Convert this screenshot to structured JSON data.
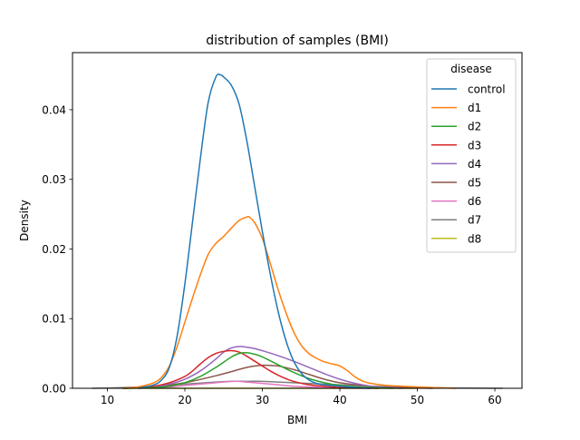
{
  "chart_data": {
    "type": "line",
    "title": "distribution of samples (BMI)",
    "xlabel": "BMI",
    "ylabel": "Density",
    "xlim": [
      5.5,
      63.5
    ],
    "ylim": [
      0,
      0.0482
    ],
    "xticks": [
      10,
      20,
      30,
      40,
      50,
      60
    ],
    "xtick_labels": [
      "10",
      "20",
      "30",
      "40",
      "50",
      "60"
    ],
    "yticks": [
      0,
      0.01,
      0.02,
      0.03,
      0.04
    ],
    "ytick_labels": [
      "0.00",
      "0.01",
      "0.02",
      "0.03",
      "0.04"
    ],
    "grid": false,
    "legend": {
      "title": "disease",
      "placement": "top-right"
    },
    "series": [
      {
        "name": "control",
        "color": "#1f77b4",
        "x": [
          14,
          16,
          17,
          18,
          19,
          20,
          21,
          22,
          23,
          24,
          24.6,
          25,
          26,
          27,
          28,
          29,
          30,
          31,
          32,
          33,
          34,
          35,
          36,
          37,
          38,
          40,
          42,
          44
        ],
        "y": [
          0,
          0.0005,
          0.0012,
          0.003,
          0.0075,
          0.015,
          0.024,
          0.033,
          0.041,
          0.0447,
          0.045,
          0.0447,
          0.0435,
          0.0408,
          0.0355,
          0.029,
          0.0225,
          0.0165,
          0.0112,
          0.007,
          0.004,
          0.0022,
          0.0012,
          0.0007,
          0.0005,
          0.0003,
          0.0001,
          0
        ]
      },
      {
        "name": "d1",
        "color": "#ff7f0e",
        "x": [
          12,
          14,
          16,
          17,
          18,
          19,
          20,
          21,
          22,
          23,
          24,
          25,
          26,
          27,
          28,
          28.3,
          29,
          30,
          31,
          32,
          33,
          34,
          35,
          36,
          37,
          38,
          39,
          40,
          41,
          42,
          43,
          44,
          46,
          48,
          50,
          52,
          55
        ],
        "y": [
          0,
          0.0002,
          0.0008,
          0.0016,
          0.0032,
          0.006,
          0.0095,
          0.013,
          0.0163,
          0.0192,
          0.0208,
          0.0218,
          0.023,
          0.0241,
          0.0246,
          0.0246,
          0.0238,
          0.0215,
          0.018,
          0.0143,
          0.011,
          0.0082,
          0.0062,
          0.005,
          0.0043,
          0.0038,
          0.0035,
          0.0032,
          0.0025,
          0.0016,
          0.001,
          0.0007,
          0.0004,
          0.0003,
          0.0002,
          0.0001,
          0
        ]
      },
      {
        "name": "d2",
        "color": "#2ca02c",
        "x": [
          12,
          16,
          18,
          20,
          22,
          24,
          26,
          27,
          28,
          29,
          30,
          32,
          34,
          36,
          38,
          40,
          42,
          44,
          47
        ],
        "y": [
          0,
          0.0001,
          0.0003,
          0.0008,
          0.0017,
          0.003,
          0.0045,
          0.005,
          0.0051,
          0.0049,
          0.0045,
          0.0034,
          0.0023,
          0.0014,
          0.0008,
          0.0004,
          0.0002,
          0.0001,
          0
        ]
      },
      {
        "name": "d3",
        "color": "#d62728",
        "x": [
          12,
          14,
          16,
          18,
          20,
          21,
          22,
          23,
          24,
          25,
          26,
          27,
          28,
          29,
          30,
          31,
          32,
          33,
          34,
          36,
          38,
          40,
          42,
          45
        ],
        "y": [
          0,
          0.0001,
          0.0003,
          0.0008,
          0.0017,
          0.0025,
          0.0035,
          0.0044,
          0.005,
          0.0053,
          0.0054,
          0.0052,
          0.0046,
          0.0039,
          0.0032,
          0.0025,
          0.0019,
          0.0014,
          0.001,
          0.0005,
          0.0003,
          0.0001,
          5e-05,
          0
        ]
      },
      {
        "name": "d4",
        "color": "#9467bd",
        "x": [
          14,
          16,
          18,
          20,
          22,
          24,
          25,
          26,
          27,
          28,
          29,
          30,
          32,
          34,
          36,
          38,
          40,
          42,
          44,
          46,
          48
        ],
        "y": [
          0,
          0.0002,
          0.0006,
          0.0013,
          0.0025,
          0.0042,
          0.0052,
          0.0058,
          0.006,
          0.0059,
          0.0057,
          0.0054,
          0.0047,
          0.0039,
          0.003,
          0.0021,
          0.0013,
          0.0007,
          0.0003,
          0.0001,
          0
        ]
      },
      {
        "name": "d5",
        "color": "#8c564b",
        "x": [
          12,
          16,
          20,
          24,
          26,
          28,
          30,
          32,
          34,
          36,
          38,
          40,
          44,
          48,
          52
        ],
        "y": [
          0,
          0.0002,
          0.0008,
          0.0018,
          0.0024,
          0.003,
          0.0033,
          0.0032,
          0.0027,
          0.002,
          0.0013,
          0.0008,
          0.0003,
          0.0001,
          0
        ]
      },
      {
        "name": "d6",
        "color": "#e377c2",
        "x": [
          14,
          16,
          18,
          20,
          22,
          24,
          26,
          27,
          28,
          30,
          32,
          34,
          36,
          40,
          44
        ],
        "y": [
          0,
          0.0001,
          0.0002,
          0.0004,
          0.0006,
          0.0008,
          0.001,
          0.001,
          0.0009,
          0.0007,
          0.0005,
          0.0003,
          0.0002,
          5e-05,
          0
        ]
      },
      {
        "name": "d7",
        "color": "#7f7f7f",
        "x": [
          8,
          12,
          16,
          20,
          24,
          26,
          28,
          30,
          32,
          36,
          40,
          44,
          48,
          52,
          56,
          61
        ],
        "y": [
          0,
          0.0001,
          0.0003,
          0.0006,
          0.0009,
          0.001,
          0.001,
          0.001,
          0.0009,
          0.0007,
          0.0005,
          0.0003,
          0.0002,
          0.0001,
          3e-05,
          0
        ]
      },
      {
        "name": "d8",
        "color": "#bcbd22",
        "x": [
          12,
          20,
          30,
          40,
          50
        ],
        "y": [
          0,
          0,
          0,
          0,
          0
        ]
      }
    ]
  }
}
